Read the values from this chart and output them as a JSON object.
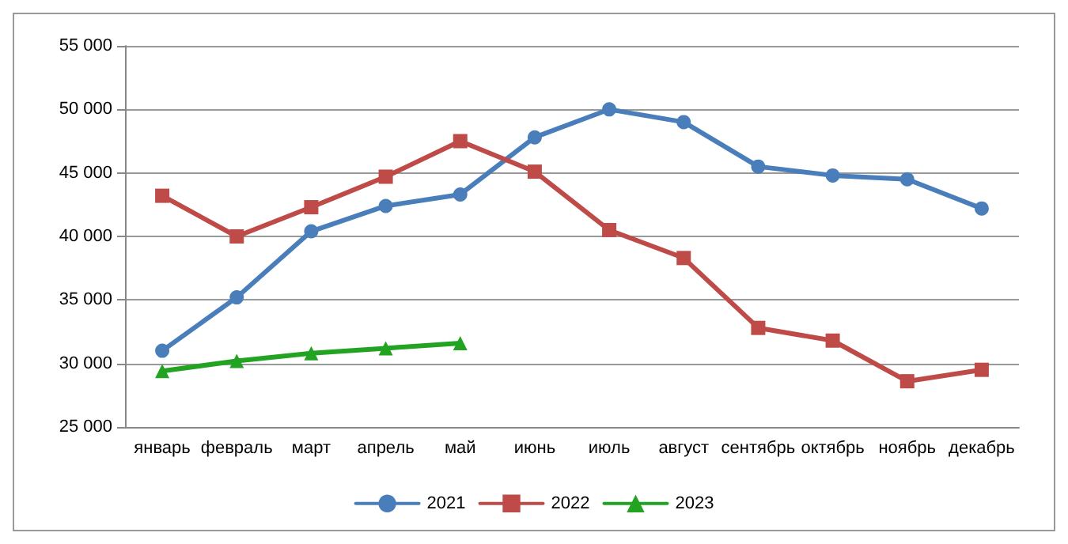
{
  "chart_data": {
    "type": "line",
    "categories": [
      "январь",
      "февраль",
      "март",
      "апрель",
      "май",
      "июнь",
      "июль",
      "август",
      "сентябрь",
      "октябрь",
      "ноябрь",
      "декабрь"
    ],
    "series": [
      {
        "name": "2021",
        "color": "#4a7ebb",
        "marker": "circle",
        "values": [
          31000,
          35200,
          40400,
          42400,
          43300,
          47800,
          50000,
          49000,
          45500,
          44800,
          44500,
          42200
        ]
      },
      {
        "name": "2022",
        "color": "#be4b48",
        "marker": "square",
        "values": [
          43200,
          40000,
          42300,
          44700,
          47500,
          45100,
          40500,
          38300,
          32800,
          31800,
          28600,
          29500
        ]
      },
      {
        "name": "2023",
        "color": "#22a322",
        "marker": "triangle",
        "values": [
          29400,
          30200,
          30800,
          31200,
          31600,
          null,
          null,
          null,
          null,
          null,
          null,
          null
        ]
      }
    ],
    "ylim": [
      25000,
      55000
    ],
    "yticks": [
      {
        "value": 25000,
        "label": "25 000"
      },
      {
        "value": 30000,
        "label": "30 000"
      },
      {
        "value": 35000,
        "label": "35 000"
      },
      {
        "value": 40000,
        "label": "40 000"
      },
      {
        "value": 45000,
        "label": "45 000"
      },
      {
        "value": 50000,
        "label": "50 000"
      },
      {
        "value": 55000,
        "label": "55 000"
      }
    ],
    "grid": "y",
    "legend": "bottom",
    "line_style": "solid"
  }
}
